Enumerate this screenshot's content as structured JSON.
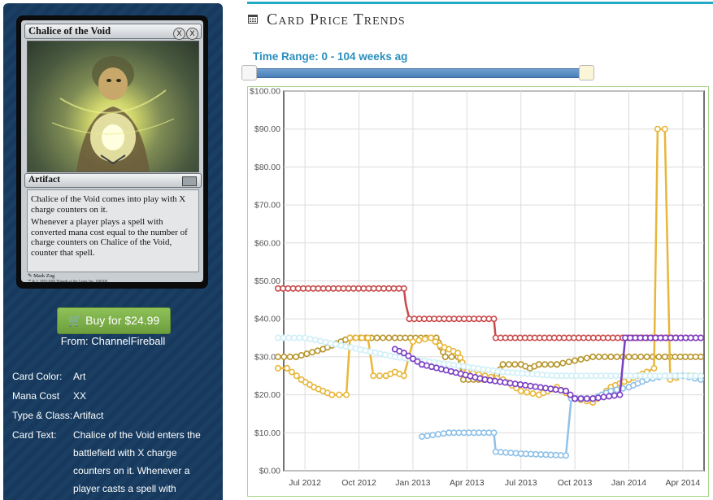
{
  "card": {
    "name": "Chalice of the Void",
    "mana_symbols": [
      "X",
      "X"
    ],
    "type_line": "Artifact",
    "rules_text": [
      "Chalice of the Void comes into play with X charge counters on it.",
      "Whenever a player plays a spell with converted mana cost equal to the number of charge counters on Chalice of the Void, counter that spell."
    ],
    "artist": "Mark Zug",
    "copyright": "™ & © 1993-2003 Wizards of the Coast, Inc. 158/306"
  },
  "buy": {
    "label": "Buy for $24.99",
    "from": "From: ChannelFireball"
  },
  "attributes": [
    {
      "label": "Card Color:",
      "value": "Art"
    },
    {
      "label": "Mana Cost",
      "value": "XX"
    },
    {
      "label": "Type & Class:",
      "value": "Artifact"
    },
    {
      "label": "Card Text:",
      "value": "Chalice of the Void enters the battlefield with X charge counters on it. Whenever a player casts a spell with"
    }
  ],
  "panel": {
    "title": "Card Price Trends",
    "range_label": "Time Range: 0 - 104 weeks ag"
  },
  "colors": {
    "accent": "#25a9c8",
    "buy_green": "#7cb24a",
    "panel_bg": "#163a5f"
  },
  "chart_data": {
    "type": "line",
    "title": "",
    "xlabel": "",
    "ylabel": "",
    "y_ticks": [
      "$0.00",
      "$10.00",
      "$20.00",
      "$30.00",
      "$40.00",
      "$50.00",
      "$60.00",
      "$70.00",
      "$80.00",
      "$90.00",
      "$100.00"
    ],
    "x_ticks": [
      "Jul 2012",
      "Oct 2012",
      "Jan 2013",
      "Apr 2013",
      "Jul 2013",
      "Oct 2013",
      "Jan 2014",
      "Apr 2014"
    ],
    "ylim": [
      0,
      100
    ],
    "xlim_months": [
      0,
      23
    ],
    "grid": true,
    "series": [
      {
        "color": "#c94a4a",
        "points": [
          [
            -0.5,
            48
          ],
          [
            6.5,
            48
          ],
          [
            6.6,
            44
          ],
          [
            6.8,
            40
          ],
          [
            11.5,
            40
          ],
          [
            11.6,
            35
          ],
          [
            23,
            35
          ]
        ]
      },
      {
        "color": "#b8962e",
        "points": [
          [
            -0.5,
            30
          ],
          [
            0.5,
            30
          ],
          [
            2,
            32
          ],
          [
            3.5,
            35
          ],
          [
            5,
            35
          ],
          [
            6,
            35
          ],
          [
            8.3,
            35
          ],
          [
            8.8,
            30
          ],
          [
            9.5,
            30
          ],
          [
            9.8,
            24
          ],
          [
            11.5,
            24
          ],
          [
            12,
            28
          ],
          [
            13,
            28
          ],
          [
            13.5,
            27
          ],
          [
            14,
            28
          ],
          [
            15,
            28
          ],
          [
            16,
            29
          ],
          [
            17,
            30
          ],
          [
            18,
            30
          ],
          [
            19,
            30
          ],
          [
            20,
            30
          ],
          [
            21,
            30
          ],
          [
            23,
            30
          ]
        ]
      },
      {
        "color": "#e8b73a",
        "points": [
          [
            -0.5,
            27
          ],
          [
            0,
            27
          ],
          [
            0.8,
            24
          ],
          [
            1.5,
            22
          ],
          [
            2.5,
            20
          ],
          [
            3.3,
            20
          ],
          [
            3.5,
            35
          ],
          [
            4.5,
            35
          ],
          [
            4.8,
            25
          ],
          [
            5.5,
            25
          ],
          [
            6,
            26
          ],
          [
            6.5,
            25
          ],
          [
            7,
            34
          ],
          [
            8,
            35
          ],
          [
            8.5,
            33
          ],
          [
            9.5,
            31
          ],
          [
            10,
            26
          ],
          [
            11,
            25
          ],
          [
            12,
            24
          ],
          [
            13,
            21
          ],
          [
            14,
            20
          ],
          [
            15,
            22
          ],
          [
            16,
            19
          ],
          [
            17,
            18
          ],
          [
            18,
            22
          ],
          [
            19,
            24
          ],
          [
            20,
            26
          ],
          [
            20.4,
            27
          ],
          [
            20.6,
            90
          ],
          [
            21,
            90
          ],
          [
            21.3,
            24
          ],
          [
            22,
            25
          ],
          [
            23,
            25
          ]
        ]
      },
      {
        "color": "#8fc1e8",
        "points": [
          [
            7.5,
            9
          ],
          [
            9,
            10
          ],
          [
            11.5,
            10
          ],
          [
            11.6,
            5
          ],
          [
            13,
            4.5
          ],
          [
            15.5,
            4
          ],
          [
            15.8,
            19
          ],
          [
            17,
            19
          ],
          [
            18,
            21
          ],
          [
            19,
            22
          ],
          [
            20,
            24
          ],
          [
            21,
            25
          ],
          [
            22,
            25
          ],
          [
            23,
            24
          ]
        ]
      },
      {
        "color": "#cfeff7",
        "points": [
          [
            -0.5,
            35
          ],
          [
            1,
            35
          ],
          [
            3,
            33
          ],
          [
            6,
            30
          ],
          [
            9,
            28
          ],
          [
            12,
            26
          ],
          [
            15,
            25
          ],
          [
            18,
            25
          ],
          [
            21,
            25
          ],
          [
            23,
            25
          ]
        ]
      },
      {
        "color": "#7a3dc4",
        "points": [
          [
            6,
            32
          ],
          [
            6.5,
            31
          ],
          [
            7.5,
            28
          ],
          [
            11,
            24
          ],
          [
            15.5,
            21
          ],
          [
            16,
            19
          ],
          [
            17,
            19
          ],
          [
            18.5,
            20
          ],
          [
            18.8,
            35
          ],
          [
            23,
            35
          ]
        ]
      }
    ]
  }
}
